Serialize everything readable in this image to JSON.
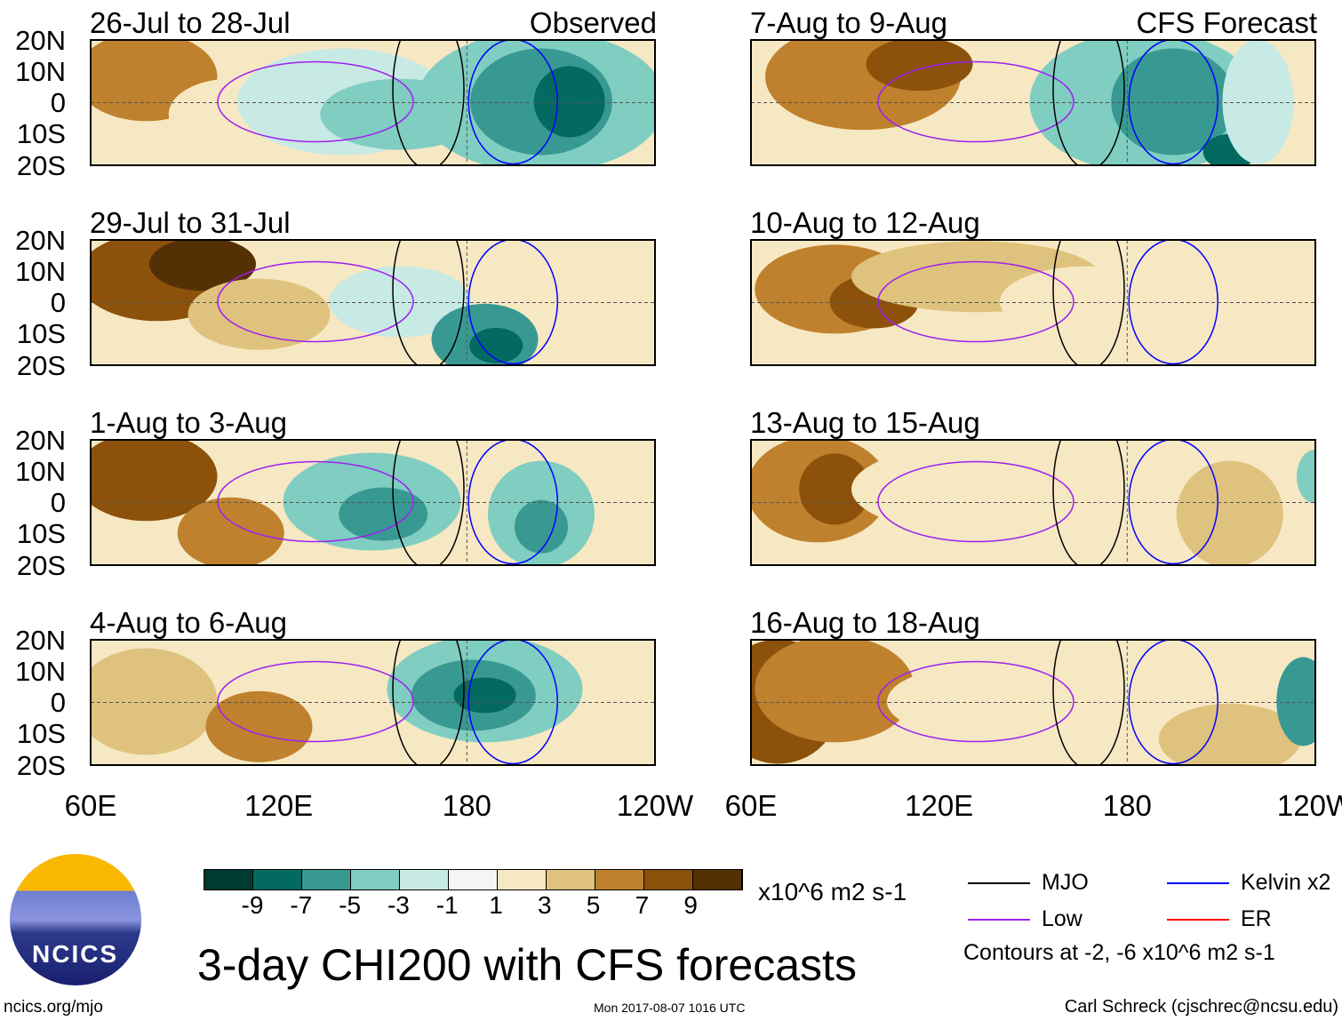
{
  "panels": {
    "left": [
      {
        "title": "26-Jul to 28-Jul",
        "tag": "Observed"
      },
      {
        "title": "29-Jul to 31-Jul"
      },
      {
        "title": "1-Aug to 3-Aug"
      },
      {
        "title": "4-Aug to 6-Aug"
      }
    ],
    "right": [
      {
        "title": "7-Aug to 9-Aug",
        "tag": "CFS Forecast"
      },
      {
        "title": "10-Aug to 12-Aug"
      },
      {
        "title": "13-Aug to 15-Aug"
      },
      {
        "title": "16-Aug to 18-Aug"
      }
    ]
  },
  "lat_labels": [
    "20N",
    "10N",
    "0",
    "10S",
    "20S"
  ],
  "lon_labels": [
    "60E",
    "120E",
    "180",
    "120W"
  ],
  "colorbar": {
    "colors": [
      "#013a33",
      "#046960",
      "#389992",
      "#80cdc1",
      "#c7eae5",
      "#f5f5f5",
      "#f6e8c3",
      "#dfc27d",
      "#bf812d",
      "#8c510a",
      "#543005"
    ],
    "labels": [
      "-9",
      "-7",
      "-5",
      "-3",
      "-1",
      "1",
      "3",
      "5",
      "7",
      "9"
    ],
    "units": "x10^6 m2 s-1"
  },
  "legend": {
    "items": [
      {
        "label": "MJO",
        "color": "#000000"
      },
      {
        "label": "Kelvin x2",
        "color": "#0000ff"
      },
      {
        "label": "Low",
        "color": "#a020f0"
      },
      {
        "label": "ER",
        "color": "#ff0000"
      }
    ],
    "note": "Contours at -2, -6 x10^6 m2 s-1"
  },
  "title": "3-day CHI200 with CFS forecasts",
  "logo_text": "NCICS",
  "url": "ncics.org/mjo",
  "timestamp": "Mon 2017-08-07 1016 UTC",
  "credit": "Carl Schreck (cjschrec@ncsu.edu)",
  "chart_data": {
    "type": "heatmap",
    "title": "3-day CHI200 with CFS forecasts",
    "x_range": [
      "60E",
      "120W"
    ],
    "y_range": [
      "20S",
      "20N"
    ],
    "levels": [
      -9,
      -7,
      -5,
      -3,
      -1,
      1,
      3,
      5,
      7,
      9
    ],
    "units": "x10^6 m2 s-1",
    "contour_levels": [
      -2,
      -6
    ]
  }
}
